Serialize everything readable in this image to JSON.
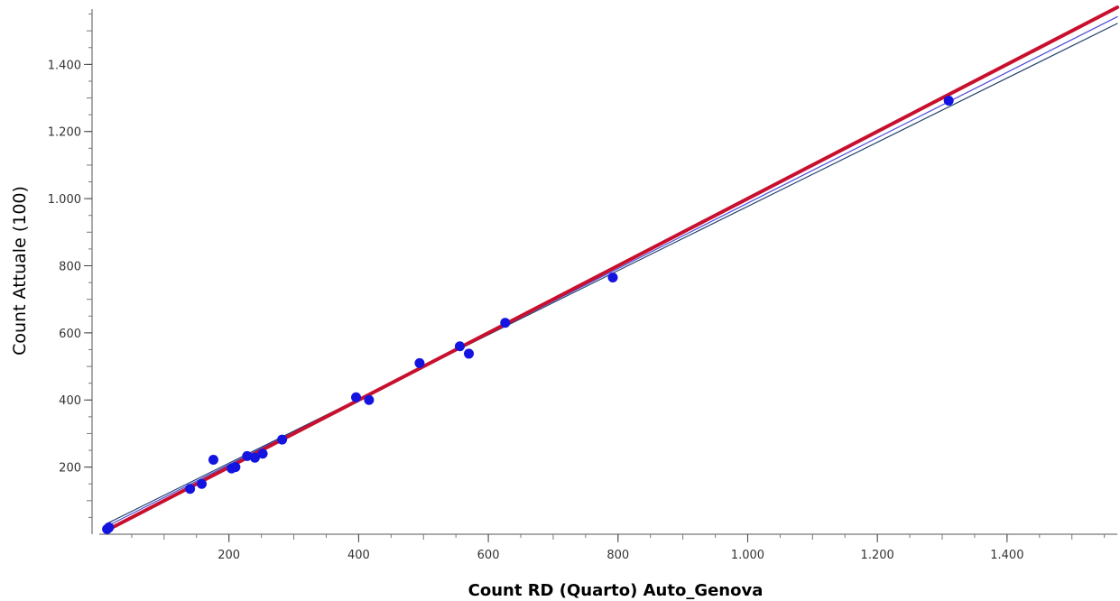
{
  "chart_data": {
    "type": "scatter",
    "xlabel": "Count RD (Quarto) Auto_Genova",
    "ylabel": "Count Attuale (100)",
    "xlim": [
      0,
      1570
    ],
    "ylim": [
      0,
      1565
    ],
    "x_ticks": [
      200,
      400,
      600,
      800,
      1000,
      1200,
      1400
    ],
    "x_tick_labels": [
      "200",
      "400",
      "600",
      "800",
      "1.000",
      "1.200",
      "1.400"
    ],
    "y_ticks": [
      200,
      400,
      600,
      800,
      1000,
      1200,
      1400
    ],
    "y_tick_labels": [
      "200",
      "400",
      "600",
      "800",
      "1.000",
      "1.200",
      "1.400"
    ],
    "grid": false,
    "legend": "none",
    "points": [
      {
        "x": 12,
        "y": 15
      },
      {
        "x": 15,
        "y": 20
      },
      {
        "x": 140,
        "y": 135
      },
      {
        "x": 158,
        "y": 150
      },
      {
        "x": 176,
        "y": 222
      },
      {
        "x": 204,
        "y": 196
      },
      {
        "x": 210,
        "y": 200
      },
      {
        "x": 228,
        "y": 233
      },
      {
        "x": 240,
        "y": 228
      },
      {
        "x": 252,
        "y": 240
      },
      {
        "x": 282,
        "y": 282
      },
      {
        "x": 396,
        "y": 408
      },
      {
        "x": 416,
        "y": 400
      },
      {
        "x": 494,
        "y": 510
      },
      {
        "x": 556,
        "y": 560
      },
      {
        "x": 570,
        "y": 538
      },
      {
        "x": 626,
        "y": 630
      },
      {
        "x": 792,
        "y": 765
      },
      {
        "x": 1310,
        "y": 1292
      }
    ],
    "lines": [
      {
        "x": [
          10,
          1570
        ],
        "y": [
          30,
          1522
        ]
      },
      {
        "x": [
          10,
          1570
        ],
        "y": [
          22,
          1542
        ]
      },
      {
        "x": [
          10,
          1570
        ],
        "y": [
          10,
          1570
        ]
      }
    ],
    "colors": {
      "points": "#1414e0",
      "fit_lines": [
        "#1e3f6b",
        "#4a4ad8",
        "#c8102e"
      ]
    }
  }
}
